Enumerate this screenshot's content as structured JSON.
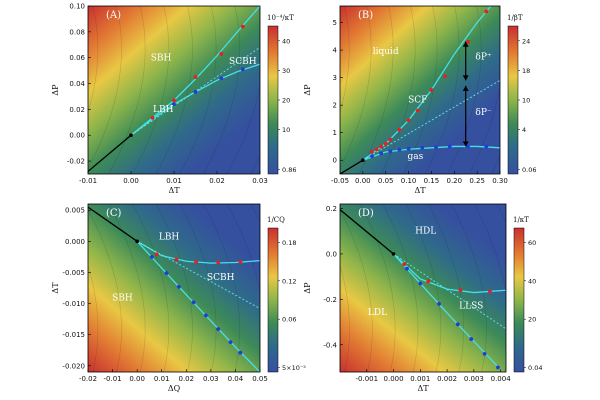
{
  "chart_data": [
    {
      "type": "heatmap",
      "panel_label": "(A)",
      "xlabel": "ΔT",
      "ylabel": "ΔP",
      "xlim": [
        -0.01,
        0.03
      ],
      "ylim": [
        -0.03,
        0.1
      ],
      "x_ticks": [
        "-0.01",
        "0.00",
        "0.01",
        "0.02",
        "0.03"
      ],
      "y_ticks": [
        "-0.02",
        "0.00",
        "0.02",
        "0.04",
        "0.06",
        "0.08",
        "0.10"
      ],
      "colorbar": {
        "title": "10⁻⁴/κT",
        "ticks": [
          "40",
          "30",
          "20",
          "10",
          "0.86"
        ]
      },
      "region_labels": [
        {
          "text": "SBH",
          "x": 0.007,
          "y": 0.058
        },
        {
          "text": "SCBH",
          "x": 0.026,
          "y": 0.055
        },
        {
          "text": "LBH",
          "x": 0.0075,
          "y": 0.018
        }
      ],
      "critical_point": {
        "x": 0.0,
        "y": 0.0
      },
      "series": [
        {
          "name": "black line",
          "x": [
            -0.01,
            0.0
          ],
          "y": [
            -0.028,
            0.0
          ]
        },
        {
          "name": "upper cyan",
          "x": [
            0.0,
            0.005,
            0.01,
            0.015,
            0.02,
            0.025,
            0.03
          ],
          "y": [
            0.0,
            0.0135,
            0.027,
            0.0435,
            0.0615,
            0.081,
            0.1
          ]
        },
        {
          "name": "lower cyan",
          "x": [
            0.0,
            0.005,
            0.01,
            0.015,
            0.02,
            0.025,
            0.03
          ],
          "y": [
            0.0,
            0.0125,
            0.024,
            0.0335,
            0.0425,
            0.0495,
            0.055
          ]
        },
        {
          "name": "dotted line",
          "x": [
            0.0,
            0.03
          ],
          "y": [
            0.0,
            0.068
          ]
        },
        {
          "name": "red points",
          "x": [
            0.005,
            0.01,
            0.015,
            0.021,
            0.026
          ],
          "y": [
            0.0135,
            0.027,
            0.045,
            0.063,
            0.084
          ]
        },
        {
          "name": "blue points",
          "x": [
            0.01,
            0.015,
            0.021,
            0.026
          ],
          "y": [
            0.024,
            0.0335,
            0.044,
            0.051
          ]
        }
      ]
    },
    {
      "type": "heatmap",
      "panel_label": "(B)",
      "xlabel": "ΔT",
      "ylabel": "ΔP",
      "xlim": [
        -0.05,
        0.3
      ],
      "ylim": [
        -0.5,
        5.6
      ],
      "x_ticks": [
        "-0.05",
        "0.00",
        "0.05",
        "0.10",
        "0.15",
        "0.20",
        "0.25",
        "0.30"
      ],
      "y_ticks": [
        "0",
        "1",
        "2",
        "3",
        "4",
        "5"
      ],
      "colorbar": {
        "title": "1/βT",
        "ticks": [
          "24",
          "18",
          "10",
          "4",
          "0.06"
        ]
      },
      "region_labels": [
        {
          "text": "liquid",
          "x": 0.05,
          "y": 3.85
        },
        {
          "text": "SCF",
          "x": 0.12,
          "y": 2.1
        },
        {
          "text": "gas",
          "x": 0.115,
          "y": 0.05
        }
      ],
      "annotations": [
        {
          "text": "δP⁺",
          "x": 0.255,
          "y": 3.65
        },
        {
          "text": "δP⁻",
          "x": 0.255,
          "y": 1.65
        }
      ],
      "critical_point": {
        "x": 0.0,
        "y": 0.0
      },
      "series": [
        {
          "name": "black line",
          "x": [
            -0.05,
            0.0
          ],
          "y": [
            -0.5,
            0.0
          ]
        },
        {
          "name": "upper cyan",
          "x": [
            0.0,
            0.05,
            0.1,
            0.15,
            0.2,
            0.25,
            0.28
          ],
          "y": [
            0.0,
            0.6,
            1.45,
            2.55,
            3.85,
            5.0,
            5.6
          ]
        },
        {
          "name": "lower cyan",
          "x": [
            0.0,
            0.05,
            0.1,
            0.15,
            0.2,
            0.25,
            0.3
          ],
          "y": [
            0.0,
            0.3,
            0.4,
            0.45,
            0.5,
            0.5,
            0.45
          ]
        },
        {
          "name": "dotted line",
          "x": [
            0.0,
            0.3
          ],
          "y": [
            0.0,
            2.9
          ]
        },
        {
          "name": "red points",
          "x": [
            0.02,
            0.03,
            0.04,
            0.05,
            0.06,
            0.08,
            0.1,
            0.12,
            0.15,
            0.18,
            0.23,
            0.27
          ],
          "y": [
            0.3,
            0.4,
            0.5,
            0.6,
            0.75,
            1.1,
            1.45,
            1.8,
            2.55,
            3.05,
            4.3,
            5.4
          ]
        },
        {
          "name": "blue points",
          "x": [
            0.02,
            0.04,
            0.06,
            0.08,
            0.1,
            0.13,
            0.16,
            0.19,
            0.23,
            0.27
          ],
          "y": [
            0.15,
            0.25,
            0.32,
            0.38,
            0.42,
            0.45,
            0.47,
            0.5,
            0.5,
            0.5
          ]
        }
      ]
    },
    {
      "type": "heatmap",
      "panel_label": "(C)",
      "xlabel": "ΔQ",
      "ylabel": "ΔT",
      "xlim": [
        -0.02,
        0.05
      ],
      "ylim": [
        -0.021,
        0.006
      ],
      "x_ticks": [
        "-0.02",
        "-0.01",
        "0.00",
        "0.01",
        "0.02",
        "0.03",
        "0.04",
        "0.05"
      ],
      "y_ticks": [
        "0.005",
        "0.000",
        "-0.005",
        "-0.010",
        "-0.015",
        "-0.020"
      ],
      "colorbar": {
        "title": "1/CQ",
        "ticks": [
          "0.18",
          "0.12",
          "0.06",
          "5×10⁻⁵"
        ]
      },
      "region_labels": [
        {
          "text": "LBH",
          "x": 0.013,
          "y": 0.0003
        },
        {
          "text": "SBH",
          "x": -0.006,
          "y": -0.0095
        },
        {
          "text": "SCBH",
          "x": 0.034,
          "y": -0.0062
        }
      ],
      "critical_point": {
        "x": 0.0,
        "y": 0.0
      },
      "series": [
        {
          "name": "black line",
          "x": [
            -0.02,
            0.0
          ],
          "y": [
            0.0055,
            0.0
          ]
        },
        {
          "name": "upper cyan",
          "x": [
            0.0,
            0.01,
            0.02,
            0.03,
            0.04,
            0.05
          ],
          "y": [
            0.0,
            -0.0023,
            -0.0032,
            -0.0035,
            -0.0034,
            -0.0031
          ]
        },
        {
          "name": "lower cyan",
          "x": [
            0.0,
            0.01,
            0.02,
            0.03,
            0.04,
            0.05
          ],
          "y": [
            0.0,
            -0.0043,
            -0.0086,
            -0.0128,
            -0.017,
            -0.021
          ]
        },
        {
          "name": "dotted line",
          "x": [
            0.0,
            0.05
          ],
          "y": [
            0.0,
            -0.0108
          ]
        },
        {
          "name": "red points",
          "x": [
            0.008,
            0.016,
            0.024,
            0.033,
            0.042
          ],
          "y": [
            -0.0021,
            -0.0029,
            -0.0033,
            -0.0034,
            -0.0033
          ]
        },
        {
          "name": "blue points",
          "x": [
            0.006,
            0.012,
            0.017,
            0.023,
            0.028,
            0.033,
            0.038,
            0.042
          ],
          "y": [
            -0.0025,
            -0.0051,
            -0.0073,
            -0.0098,
            -0.0119,
            -0.0141,
            -0.0162,
            -0.0179
          ]
        }
      ]
    },
    {
      "type": "heatmap",
      "panel_label": "(D)",
      "xlabel": "ΔT",
      "ylabel": "ΔP",
      "xlim": [
        -0.002,
        0.0042
      ],
      "ylim": [
        -0.52,
        0.22
      ],
      "x_ticks": [
        "-0.001",
        "0.000",
        "0.001",
        "0.002",
        "0.003",
        "0.004"
      ],
      "y_ticks": [
        "0.2",
        "0.0",
        "-0.2",
        "-0.4"
      ],
      "colorbar": {
        "title": "1/κT",
        "ticks": [
          "60",
          "40",
          "20",
          "0.04"
        ]
      },
      "region_labels": [
        {
          "text": "HDL",
          "x": 0.0012,
          "y": 0.09
        },
        {
          "text": "LDL",
          "x": -0.0006,
          "y": -0.27
        },
        {
          "text": "LLSS",
          "x": 0.0029,
          "y": -0.24
        }
      ],
      "critical_point": {
        "x": 0.0,
        "y": 0.0
      },
      "series": [
        {
          "name": "black line",
          "x": [
            -0.002,
            0.0
          ],
          "y": [
            0.195,
            0.0
          ]
        },
        {
          "name": "upper cyan",
          "x": [
            0.0,
            0.001,
            0.002,
            0.003,
            0.0042
          ],
          "y": [
            0.0,
            -0.11,
            -0.155,
            -0.17,
            -0.16
          ]
        },
        {
          "name": "lower cyan",
          "x": [
            0.0,
            0.001,
            0.002,
            0.003,
            0.004
          ],
          "y": [
            0.0,
            -0.13,
            -0.26,
            -0.385,
            -0.51
          ]
        },
        {
          "name": "dotted line",
          "x": [
            0.0,
            0.0042
          ],
          "y": [
            0.0,
            -0.33
          ]
        },
        {
          "name": "red points",
          "x": [
            0.0004,
            0.0013,
            0.0025,
            0.0036
          ],
          "y": [
            -0.045,
            -0.12,
            -0.16,
            -0.165
          ]
        },
        {
          "name": "blue points",
          "x": [
            0.0005,
            0.001,
            0.0017,
            0.0024,
            0.0029,
            0.0034,
            0.0039
          ],
          "y": [
            -0.065,
            -0.13,
            -0.22,
            -0.31,
            -0.375,
            -0.44,
            -0.5
          ]
        }
      ]
    }
  ]
}
